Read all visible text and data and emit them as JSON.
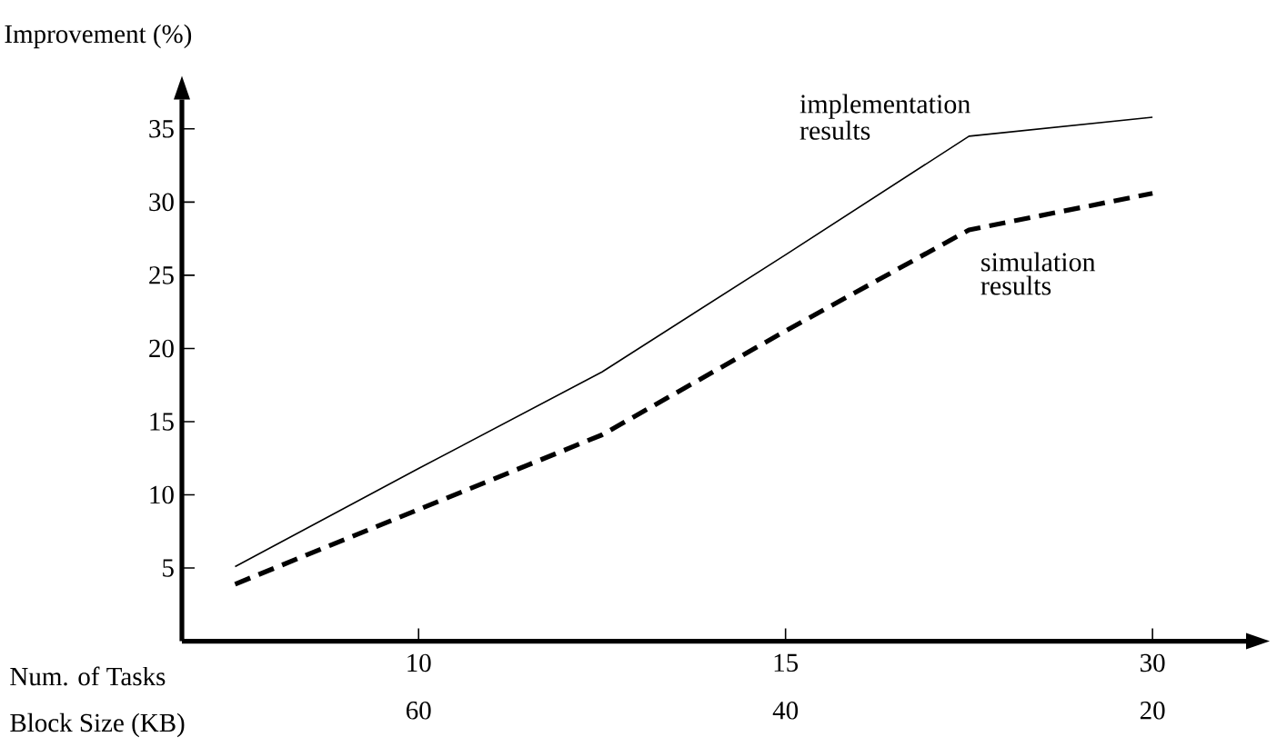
{
  "chart_data": {
    "type": "line",
    "ylabel": "Improvement (%)",
    "xlabel": "Num. of Tasks",
    "categories": [
      null,
      "10",
      null,
      "15",
      null,
      "30"
    ],
    "ylim": [
      0,
      37
    ],
    "yticks": [
      5,
      10,
      15,
      20,
      25,
      30,
      35
    ],
    "annotations": [
      "Block Size (KB)",
      "60",
      "40",
      "20"
    ],
    "series": [
      {
        "name": "implementation results",
        "color": "#000000",
        "line_style": "solid",
        "values": [
          5.1,
          11.8,
          18.4,
          26.4,
          34.5,
          35.8
        ]
      },
      {
        "name": "simulation results",
        "color": "#000000",
        "line_style": "dashed",
        "values": [
          3.9,
          9.0,
          14.1,
          21.2,
          28.1,
          30.6
        ]
      }
    ]
  }
}
